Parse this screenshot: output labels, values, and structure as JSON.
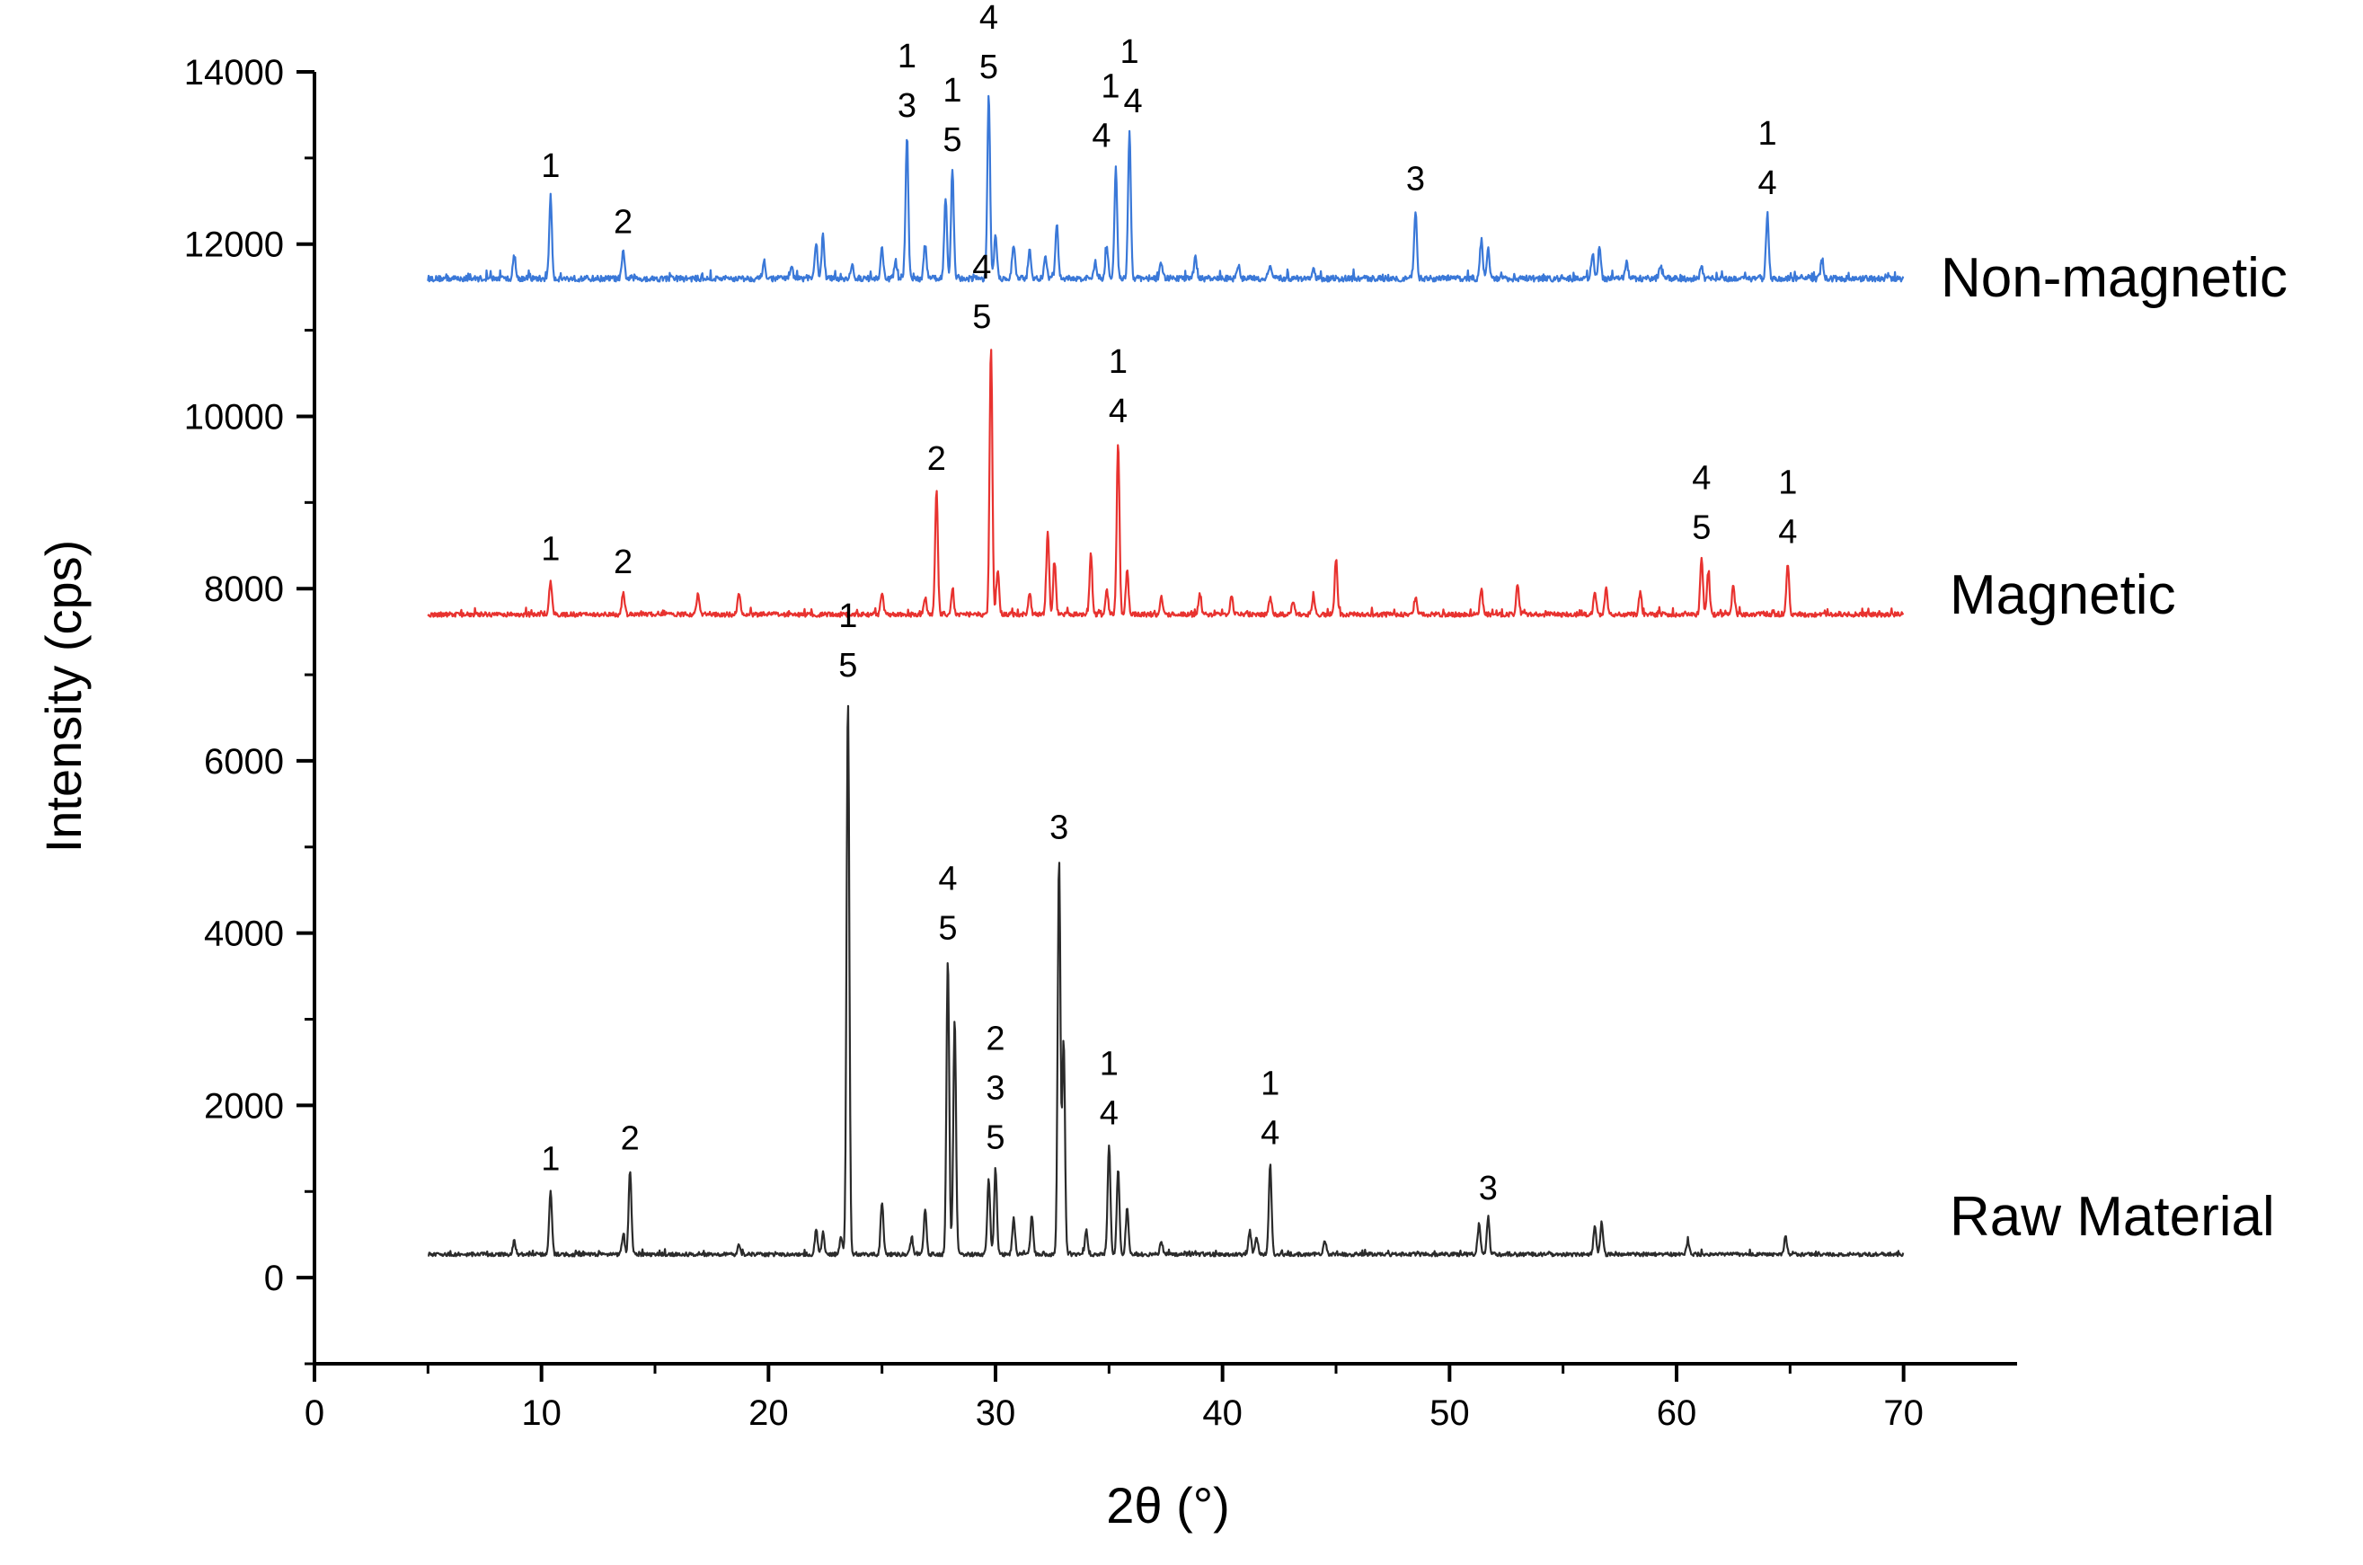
{
  "chart_data": {
    "type": "line",
    "title": "",
    "xlabel": "2θ (°)",
    "ylabel": "Intensity (cps)",
    "xlim": [
      0,
      75
    ],
    "ylim": [
      -1000,
      14000
    ],
    "xticks": [
      0,
      10,
      20,
      30,
      40,
      50,
      60,
      70
    ],
    "yticks": [
      0,
      2000,
      4000,
      6000,
      8000,
      10000,
      12000,
      14000
    ],
    "grid": false,
    "legend": "none",
    "series": [
      {
        "name": "Non-magnetic",
        "color": "#3a78d8",
        "baseline": 11600,
        "noise": 70,
        "peaks": [
          [
            8.8,
            11850
          ],
          [
            10.4,
            12550
          ],
          [
            13.6,
            11900
          ],
          [
            19.8,
            11800
          ],
          [
            21.0,
            11750
          ],
          [
            22.1,
            12000
          ],
          [
            22.4,
            12100
          ],
          [
            23.7,
            11750
          ],
          [
            25.0,
            11950
          ],
          [
            25.6,
            11800
          ],
          [
            26.1,
            13250
          ],
          [
            26.9,
            12000
          ],
          [
            27.8,
            12550
          ],
          [
            28.1,
            12850
          ],
          [
            29.7,
            13700
          ],
          [
            30.0,
            12100
          ],
          [
            30.8,
            12000
          ],
          [
            31.5,
            11950
          ],
          [
            32.2,
            11850
          ],
          [
            32.7,
            12250
          ],
          [
            34.4,
            11800
          ],
          [
            34.9,
            11950
          ],
          [
            35.3,
            12900
          ],
          [
            35.9,
            13300
          ],
          [
            37.3,
            11800
          ],
          [
            38.8,
            11850
          ],
          [
            40.7,
            11750
          ],
          [
            42.1,
            11750
          ],
          [
            44.0,
            11700
          ],
          [
            48.5,
            12400
          ],
          [
            51.4,
            12050
          ],
          [
            51.7,
            11950
          ],
          [
            56.3,
            11900
          ],
          [
            56.6,
            11950
          ],
          [
            57.8,
            11800
          ],
          [
            59.3,
            11750
          ],
          [
            61.1,
            11750
          ],
          [
            64.0,
            12350
          ],
          [
            66.4,
            11800
          ]
        ],
        "annotations": [
          {
            "x": 10.4,
            "lines": [
              "1"
            ]
          },
          {
            "x": 13.6,
            "lines": [
              "2"
            ]
          },
          {
            "x": 26.1,
            "lines": [
              "1",
              "3"
            ]
          },
          {
            "x": 28.1,
            "lines": [
              "1",
              "5"
            ]
          },
          {
            "x": 29.7,
            "lines": [
              "4",
              "5"
            ]
          },
          {
            "x": 35.3,
            "lines": [
              "1",
              "4"
            ],
            "offsets": [
              "-6",
              "-16"
            ],
            "tight": true
          },
          {
            "x": 35.9,
            "lines": [
              "1",
              "4"
            ],
            "offsets": [
              "0",
              "4"
            ]
          },
          {
            "x": 48.5,
            "lines": [
              "3"
            ]
          },
          {
            "x": 64.0,
            "lines": [
              "1",
              "4"
            ]
          }
        ]
      },
      {
        "name": "Magnetic",
        "color": "#e8322f",
        "baseline": 7700,
        "noise": 55,
        "peaks": [
          [
            10.4,
            8100
          ],
          [
            13.6,
            7950
          ],
          [
            16.9,
            7950
          ],
          [
            18.7,
            7950
          ],
          [
            25.0,
            7950
          ],
          [
            26.9,
            7900
          ],
          [
            27.4,
            9150
          ],
          [
            28.1,
            7950
          ],
          [
            29.8,
            10800
          ],
          [
            30.1,
            8200
          ],
          [
            31.5,
            7950
          ],
          [
            32.3,
            8650
          ],
          [
            32.6,
            8300
          ],
          [
            34.2,
            8400
          ],
          [
            34.9,
            8000
          ],
          [
            35.4,
            9700
          ],
          [
            35.8,
            8200
          ],
          [
            37.3,
            7900
          ],
          [
            39.0,
            7950
          ],
          [
            40.4,
            7900
          ],
          [
            42.1,
            7900
          ],
          [
            43.1,
            7850
          ],
          [
            44.0,
            7900
          ],
          [
            45.0,
            8350
          ],
          [
            48.5,
            7900
          ],
          [
            51.4,
            8000
          ],
          [
            53.0,
            8050
          ],
          [
            56.4,
            7950
          ],
          [
            56.9,
            8000
          ],
          [
            58.4,
            7950
          ],
          [
            61.1,
            8350
          ],
          [
            61.4,
            8200
          ],
          [
            62.5,
            8050
          ],
          [
            64.9,
            8300
          ]
        ],
        "annotations": [
          {
            "x": 10.4,
            "lines": [
              "1"
            ]
          },
          {
            "x": 13.6,
            "lines": [
              "2"
            ]
          },
          {
            "x": 27.4,
            "lines": [
              "2"
            ]
          },
          {
            "x": 29.8,
            "lines": [
              "4",
              "5"
            ],
            "shift": "-0.4"
          },
          {
            "x": 35.4,
            "lines": [
              "1",
              "4"
            ]
          },
          {
            "x": 61.1,
            "lines": [
              "4",
              "5"
            ]
          },
          {
            "x": 64.9,
            "lines": [
              "1",
              "4"
            ]
          }
        ]
      },
      {
        "name": "Raw Material",
        "color": "#2b2b2b",
        "baseline": 270,
        "noise": 45,
        "peaks": [
          [
            8.8,
            420
          ],
          [
            10.4,
            1020
          ],
          [
            13.6,
            500
          ],
          [
            13.9,
            1260
          ],
          [
            18.7,
            400
          ],
          [
            22.1,
            550
          ],
          [
            22.4,
            520
          ],
          [
            23.2,
            480
          ],
          [
            23.5,
            6750
          ],
          [
            25.0,
            880
          ],
          [
            26.3,
            450
          ],
          [
            26.9,
            800
          ],
          [
            27.9,
            3700
          ],
          [
            28.2,
            3000
          ],
          [
            29.7,
            1150
          ],
          [
            30.0,
            1270
          ],
          [
            30.8,
            700
          ],
          [
            31.6,
            720
          ],
          [
            32.8,
            4870
          ],
          [
            33.0,
            2750
          ],
          [
            34.0,
            550
          ],
          [
            35.0,
            1550
          ],
          [
            35.4,
            1250
          ],
          [
            35.8,
            800
          ],
          [
            37.3,
            430
          ],
          [
            41.2,
            550
          ],
          [
            41.5,
            470
          ],
          [
            42.1,
            1320
          ],
          [
            44.5,
            430
          ],
          [
            51.3,
            620
          ],
          [
            51.7,
            680
          ],
          [
            56.4,
            600
          ],
          [
            56.7,
            640
          ],
          [
            60.5,
            420
          ],
          [
            64.8,
            480
          ]
        ],
        "annotations": [
          {
            "x": 10.4,
            "lines": [
              "1"
            ]
          },
          {
            "x": 13.9,
            "lines": [
              "2"
            ]
          },
          {
            "x": 23.5,
            "lines": [
              "1",
              "5"
            ]
          },
          {
            "x": 27.9,
            "lines": [
              "4",
              "5"
            ]
          },
          {
            "x": 30.0,
            "lines": [
              "2",
              "3",
              "5"
            ]
          },
          {
            "x": 32.8,
            "lines": [
              "3"
            ]
          },
          {
            "x": 35.0,
            "lines": [
              "1",
              "4"
            ]
          },
          {
            "x": 42.1,
            "lines": [
              "1",
              "4"
            ]
          },
          {
            "x": 51.7,
            "lines": [
              "3"
            ]
          }
        ]
      }
    ]
  }
}
